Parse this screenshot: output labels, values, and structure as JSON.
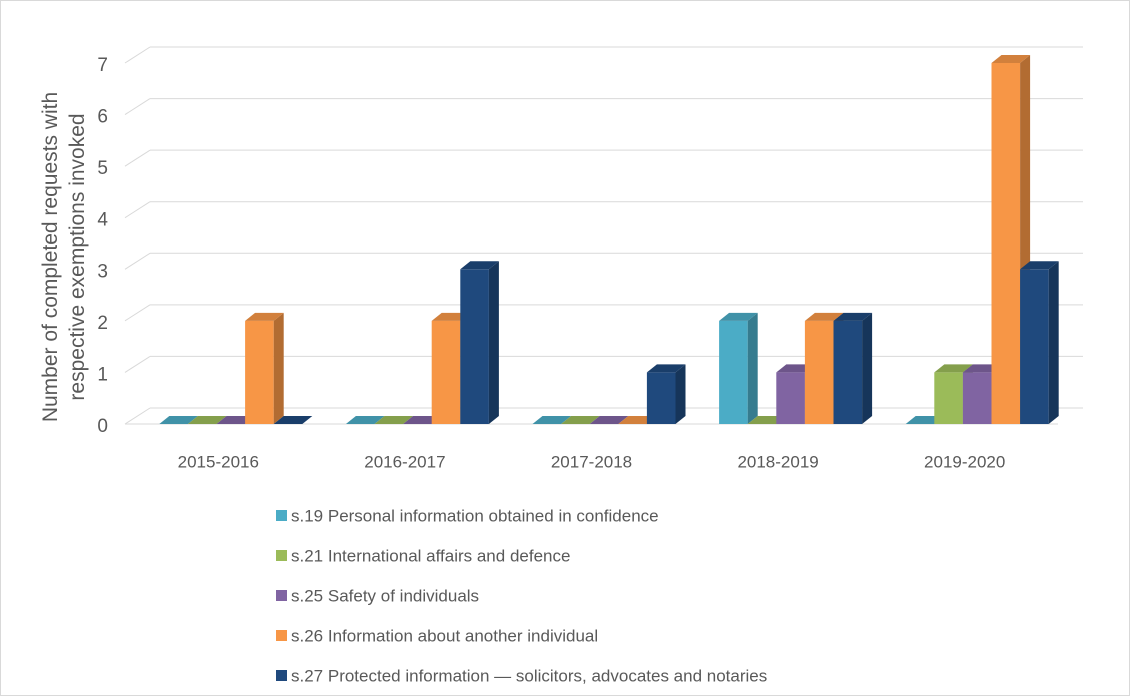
{
  "chart_data": {
    "type": "bar3d",
    "y_label": "Number of completed requests with respective exemptions invoked",
    "categories": [
      "2015-2016",
      "2016-2017",
      "2017-2018",
      "2018-2019",
      "2019-2020"
    ],
    "series": [
      {
        "name": "s.19 Personal information obtained in confidence",
        "color": "#4bacc6",
        "values": [
          0,
          0,
          0,
          2,
          0
        ]
      },
      {
        "name": "s.21 International affairs and defence",
        "color": "#9bbb59",
        "values": [
          0,
          0,
          0,
          0,
          1
        ]
      },
      {
        "name": "s.25 Safety of individuals",
        "color": "#8064a2",
        "values": [
          0,
          0,
          0,
          1,
          1
        ]
      },
      {
        "name": "s.26 Information about another individual",
        "color": "#f79646",
        "values": [
          2,
          2,
          0,
          2,
          7
        ]
      },
      {
        "name": "s.27 Protected information — solicitors, advocates and notaries",
        "color": "#1f497d",
        "values": [
          0,
          3,
          1,
          2,
          3
        ]
      }
    ],
    "ylim": [
      0,
      7
    ],
    "yticks": [
      0,
      1,
      2,
      3,
      4,
      5,
      6,
      7
    ],
    "grid": true,
    "legend": "bottom"
  }
}
